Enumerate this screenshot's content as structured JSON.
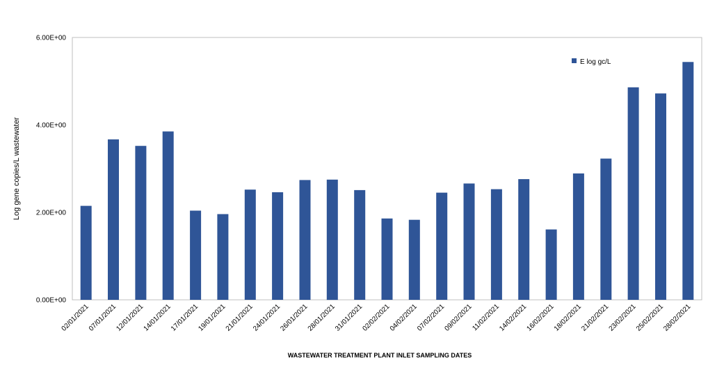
{
  "chart_data": {
    "type": "bar",
    "xlabel": "WASTEWATER TREATMENT PLANT INLET SAMPLING DATES",
    "ylabel": "Log gene copies/L wastewater",
    "ylim": [
      0,
      6
    ],
    "yticks": [
      {
        "value": 0,
        "label": "0.00E+00"
      },
      {
        "value": 2,
        "label": "2.00E+00"
      },
      {
        "value": 4,
        "label": "4.00E+00"
      },
      {
        "value": 6,
        "label": "6.00E+00"
      }
    ],
    "grid": false,
    "legend_position": "top-right",
    "categories": [
      "02/01/2021",
      "07/01/2021",
      "12/01/2021",
      "14/01/2021",
      "17/01/2021",
      "19/01/2021",
      "21/01/2021",
      "24/01/2021",
      "26/01/2021",
      "28/01/2021",
      "31/01/2021",
      "02/02/2021",
      "04/02/2021",
      "07/02/2021",
      "09/02/2021",
      "11/02/2021",
      "14/02/2021",
      "16/02/2021",
      "18/02/2021",
      "21/02/2021",
      "23/02/2021",
      "25/02/2021",
      "28/02/2021"
    ],
    "series": [
      {
        "name": "E log gc/L",
        "color": "#2F5597",
        "values": [
          2.15,
          3.67,
          3.52,
          3.85,
          2.04,
          1.96,
          2.52,
          2.46,
          2.74,
          2.75,
          2.51,
          1.86,
          1.83,
          2.45,
          2.66,
          2.53,
          2.76,
          1.61,
          2.89,
          3.23,
          4.86,
          4.72,
          5.44
        ]
      }
    ]
  }
}
